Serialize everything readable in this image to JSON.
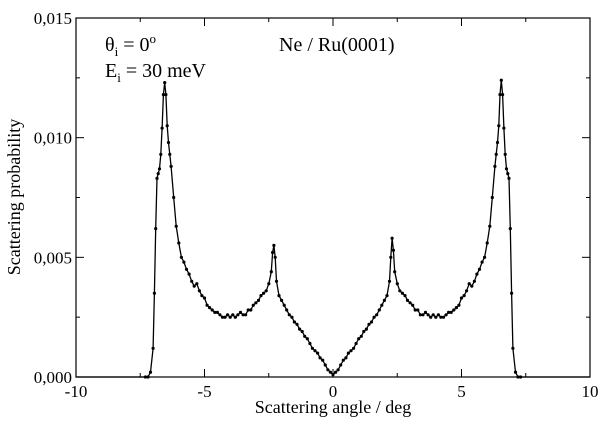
{
  "chart_data": {
    "type": "line",
    "title": "",
    "xlabel": "Scattering angle / deg",
    "ylabel": "Scattering probability",
    "xlim": [
      -10,
      10
    ],
    "ylim": [
      0,
      0.015
    ],
    "xticks": [
      -10,
      -5,
      0,
      5,
      10
    ],
    "xtick_labels": [
      "-10",
      "-5",
      "0",
      "5",
      "10"
    ],
    "yticks": [
      0,
      0.005,
      0.01,
      0.015
    ],
    "ytick_labels": [
      "0,000",
      "0,005",
      "0,010",
      "0,015"
    ],
    "grid": false,
    "legend": "none",
    "annotations": {
      "theta_symbol": "θ",
      "theta_sub": "i",
      "theta_eq": " = 0",
      "theta_sup": "o",
      "energy_symbol": "E",
      "energy_sub": "i",
      "energy_eq": " = 30 meV",
      "system": "Ne / Ru(0001)"
    },
    "series": [
      {
        "name": "Ne / Ru(0001)",
        "x": [
          -7.3,
          -7.2,
          -7.1,
          -7.0,
          -6.95,
          -6.9,
          -6.85,
          -6.8,
          -6.75,
          -6.7,
          -6.65,
          -6.6,
          -6.55,
          -6.5,
          -6.45,
          -6.4,
          -6.35,
          -6.3,
          -6.2,
          -6.1,
          -6.0,
          -5.9,
          -5.8,
          -5.7,
          -5.6,
          -5.5,
          -5.4,
          -5.3,
          -5.2,
          -5.1,
          -5.0,
          -4.9,
          -4.8,
          -4.7,
          -4.6,
          -4.5,
          -4.4,
          -4.3,
          -4.2,
          -4.1,
          -4.0,
          -3.9,
          -3.8,
          -3.7,
          -3.6,
          -3.5,
          -3.4,
          -3.3,
          -3.2,
          -3.1,
          -3.0,
          -2.9,
          -2.8,
          -2.7,
          -2.6,
          -2.5,
          -2.4,
          -2.35,
          -2.3,
          -2.25,
          -2.2,
          -2.1,
          -2.0,
          -1.9,
          -1.8,
          -1.7,
          -1.6,
          -1.5,
          -1.4,
          -1.3,
          -1.2,
          -1.1,
          -1.0,
          -0.9,
          -0.8,
          -0.7,
          -0.6,
          -0.5,
          -0.4,
          -0.3,
          -0.2,
          -0.1,
          0.0,
          0.1,
          0.2,
          0.3,
          0.4,
          0.5,
          0.6,
          0.7,
          0.8,
          0.9,
          1.0,
          1.1,
          1.2,
          1.3,
          1.4,
          1.5,
          1.6,
          1.7,
          1.8,
          1.9,
          2.0,
          2.1,
          2.2,
          2.25,
          2.3,
          2.35,
          2.4,
          2.5,
          2.6,
          2.7,
          2.8,
          2.9,
          3.0,
          3.1,
          3.2,
          3.3,
          3.4,
          3.5,
          3.6,
          3.7,
          3.8,
          3.9,
          4.0,
          4.1,
          4.2,
          4.3,
          4.4,
          4.5,
          4.6,
          4.7,
          4.8,
          4.9,
          5.0,
          5.1,
          5.2,
          5.3,
          5.4,
          5.5,
          5.6,
          5.7,
          5.8,
          5.9,
          6.0,
          6.1,
          6.2,
          6.3,
          6.35,
          6.4,
          6.45,
          6.5,
          6.55,
          6.6,
          6.65,
          6.7,
          6.75,
          6.8,
          6.85,
          6.9,
          6.95,
          7.0,
          7.1,
          7.2,
          7.3
        ],
        "y": [
          0.0,
          0.0,
          0.0002,
          0.0012,
          0.0035,
          0.0062,
          0.0083,
          0.0085,
          0.0087,
          0.0093,
          0.0104,
          0.0118,
          0.0123,
          0.0118,
          0.0105,
          0.0098,
          0.0093,
          0.0088,
          0.0075,
          0.0063,
          0.0056,
          0.005,
          0.0048,
          0.0045,
          0.0043,
          0.004,
          0.0038,
          0.0039,
          0.0036,
          0.0034,
          0.0033,
          0.003,
          0.0029,
          0.0028,
          0.0027,
          0.0027,
          0.0026,
          0.0025,
          0.0025,
          0.0026,
          0.0025,
          0.0026,
          0.0025,
          0.0026,
          0.0027,
          0.0026,
          0.0026,
          0.0028,
          0.0028,
          0.003,
          0.0031,
          0.0032,
          0.0034,
          0.0035,
          0.0036,
          0.0039,
          0.0044,
          0.0052,
          0.0055,
          0.005,
          0.004,
          0.0034,
          0.0032,
          0.003,
          0.0028,
          0.0026,
          0.0025,
          0.0023,
          0.0022,
          0.002,
          0.0019,
          0.0017,
          0.0016,
          0.0014,
          0.0012,
          0.0011,
          0.001,
          0.0008,
          0.0007,
          0.0005,
          0.0003,
          0.0002,
          0.0001,
          0.0002,
          0.0003,
          0.0005,
          0.0007,
          0.0008,
          0.001,
          0.0011,
          0.0012,
          0.0014,
          0.0016,
          0.0017,
          0.0019,
          0.002,
          0.0022,
          0.0023,
          0.0025,
          0.0026,
          0.0028,
          0.003,
          0.0032,
          0.0034,
          0.004,
          0.005,
          0.0058,
          0.0053,
          0.0044,
          0.0039,
          0.0036,
          0.0035,
          0.0034,
          0.0032,
          0.0031,
          0.003,
          0.0028,
          0.0028,
          0.0026,
          0.0026,
          0.0027,
          0.0026,
          0.0025,
          0.0026,
          0.0025,
          0.0026,
          0.0025,
          0.0025,
          0.0026,
          0.0027,
          0.0027,
          0.0028,
          0.0029,
          0.003,
          0.0033,
          0.0034,
          0.0036,
          0.0039,
          0.0038,
          0.004,
          0.0043,
          0.0045,
          0.0048,
          0.005,
          0.0056,
          0.0063,
          0.0075,
          0.0088,
          0.0093,
          0.0098,
          0.0105,
          0.0118,
          0.0124,
          0.0118,
          0.0104,
          0.0093,
          0.0087,
          0.0085,
          0.0083,
          0.0062,
          0.0035,
          0.0012,
          0.0002,
          0.0,
          0.0
        ]
      }
    ]
  }
}
